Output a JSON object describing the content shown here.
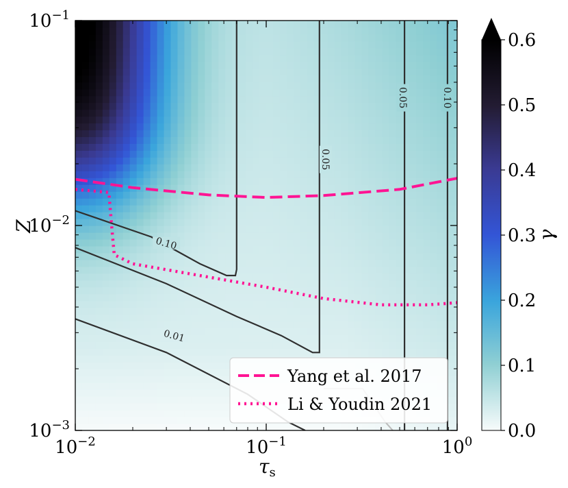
{
  "chart_data": {
    "type": "heatmap",
    "xlabel": "τ",
    "xlabel_sub": "s",
    "ylabel": "Z",
    "xscale": "log",
    "yscale": "log",
    "xlim": [
      0.01,
      1
    ],
    "ylim": [
      0.001,
      0.1
    ],
    "x_ticks": [
      {
        "value": 0.01,
        "base": "10",
        "exp": "−2"
      },
      {
        "value": 0.1,
        "base": "10",
        "exp": "−1"
      },
      {
        "value": 1,
        "base": "10",
        "exp": "0"
      }
    ],
    "y_ticks": [
      {
        "value": 0.001,
        "base": "10",
        "exp": "−3"
      },
      {
        "value": 0.01,
        "base": "10",
        "exp": "−2"
      },
      {
        "value": 0.1,
        "base": "10",
        "exp": "−1"
      }
    ],
    "colorbar": {
      "label": "γ",
      "range": [
        0.0,
        0.6
      ],
      "extend": "max",
      "ticks": [
        "0.0",
        "0.1",
        "0.2",
        "0.3",
        "0.4",
        "0.5",
        "0.6"
      ]
    },
    "contours": [
      {
        "level": "0.01",
        "label_x": 0.033,
        "label_z": 0.0029,
        "points": [
          [
            0.01,
            0.0035
          ],
          [
            0.03,
            0.0024
          ],
          [
            0.08,
            0.0015
          ],
          [
            0.13,
            0.0011
          ],
          [
            0.16,
            0.001
          ]
        ]
      },
      {
        "level": "0.05",
        "label_x": 0.205,
        "label_z": 0.021,
        "points": [
          [
            0.01,
            0.0078
          ],
          [
            0.03,
            0.0052
          ],
          [
            0.07,
            0.0036
          ],
          [
            0.12,
            0.0029
          ],
          [
            0.175,
            0.0024
          ],
          [
            0.19,
            0.0024
          ],
          [
            0.19,
            0.1
          ]
        ]
      },
      {
        "level": "0.10",
        "label_x": 0.03,
        "label_z": 0.0082,
        "points": [
          [
            0.01,
            0.0118
          ],
          [
            0.025,
            0.0088
          ],
          [
            0.045,
            0.0065
          ],
          [
            0.062,
            0.0057
          ],
          [
            0.069,
            0.0057
          ],
          [
            0.07,
            0.0061
          ],
          [
            0.07,
            0.1
          ]
        ]
      },
      {
        "level": "0.05",
        "label_x": 0.52,
        "label_z": 0.042,
        "points": [
          [
            0.53,
            0.001
          ],
          [
            0.53,
            0.1
          ]
        ]
      },
      {
        "level": "0.10",
        "label_x": 0.89,
        "label_z": 0.042,
        "points": [
          [
            0.89,
            0.001
          ],
          [
            0.89,
            0.1
          ]
        ]
      },
      {
        "level": "",
        "label_x": null,
        "label_z": null,
        "points": [
          [
            0.2,
            0.0016
          ],
          [
            0.32,
            0.0016
          ],
          [
            0.42,
            0.0011
          ],
          [
            0.46,
            0.001
          ]
        ]
      }
    ],
    "series": [
      {
        "name": "Yang et al. 2017",
        "style": "dashed",
        "color": "#ff1493",
        "points": [
          [
            0.01,
            0.0168
          ],
          [
            0.02,
            0.0153
          ],
          [
            0.05,
            0.0141
          ],
          [
            0.1,
            0.0137
          ],
          [
            0.2,
            0.014
          ],
          [
            0.5,
            0.015
          ],
          [
            1.0,
            0.017
          ]
        ]
      },
      {
        "name": "Li & Youdin 2021",
        "style": "dotted",
        "color": "#ff1493",
        "points": [
          [
            0.01,
            0.015
          ],
          [
            0.015,
            0.0145
          ],
          [
            0.0155,
            0.01
          ],
          [
            0.016,
            0.0072
          ],
          [
            0.02,
            0.0065
          ],
          [
            0.05,
            0.0056
          ],
          [
            0.1,
            0.005
          ],
          [
            0.2,
            0.0044
          ],
          [
            0.4,
            0.0041
          ],
          [
            0.7,
            0.0041
          ],
          [
            1.0,
            0.0042
          ]
        ]
      }
    ],
    "legend_placement": "lower-right",
    "colors": {
      "accent": "#ff1493",
      "contour": "#2f2f2f"
    }
  }
}
